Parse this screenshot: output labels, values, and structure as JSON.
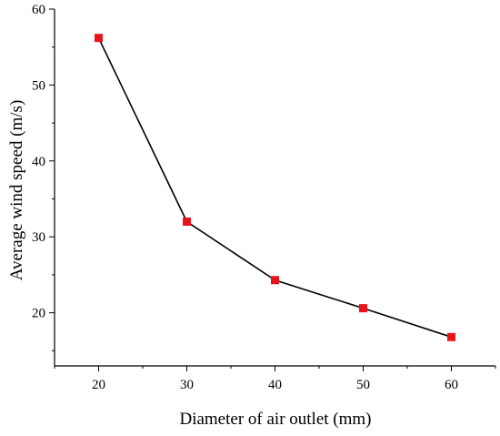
{
  "chart_data": {
    "type": "line",
    "title": "",
    "xlabel": "Diameter of air outlet  (mm)",
    "ylabel": "Average wind speed (m/s)",
    "x": [
      20,
      30,
      40,
      50,
      60
    ],
    "series": [
      {
        "values": [
          56.2,
          32.0,
          24.3,
          20.6,
          16.8
        ]
      }
    ],
    "xlim": [
      15,
      65
    ],
    "ylim": [
      13,
      60
    ],
    "xticks": [
      "20",
      "30",
      "40",
      "50",
      "60"
    ],
    "yticks": [
      "20",
      "30",
      "40",
      "50",
      "60"
    ],
    "grid": false,
    "legend": "none",
    "colors": {
      "line": "#000000",
      "marker": "#e8141c",
      "axis": "#000000"
    }
  }
}
